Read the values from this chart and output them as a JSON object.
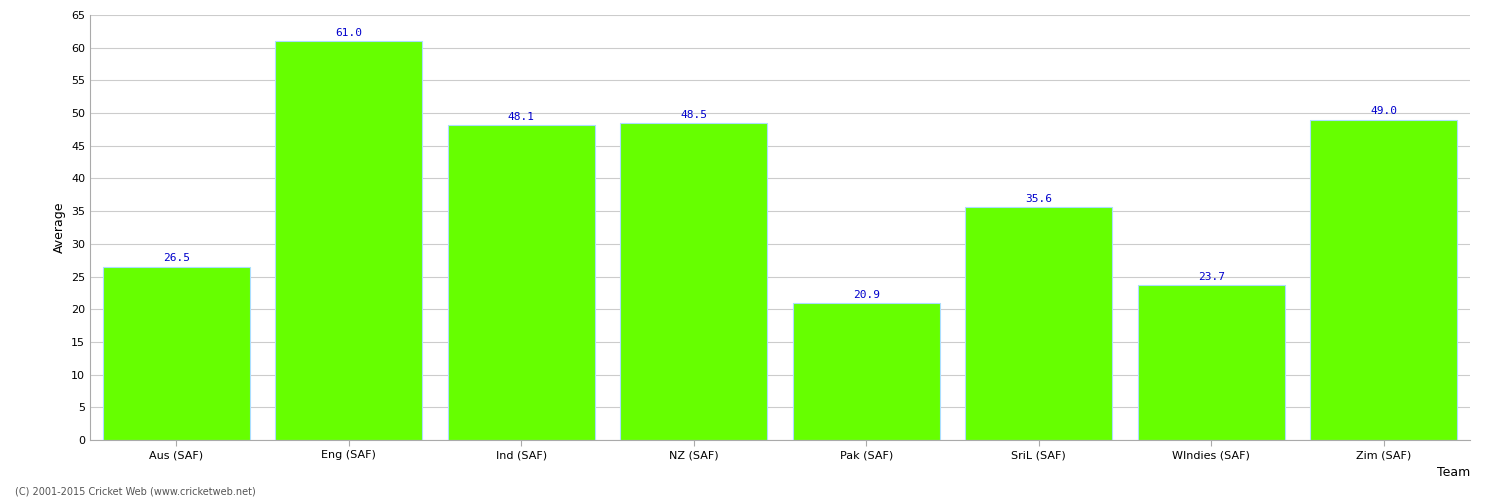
{
  "categories": [
    "Aus (SAF)",
    "Eng (SAF)",
    "Ind (SAF)",
    "NZ (SAF)",
    "Pak (SAF)",
    "SriL (SAF)",
    "WIndies (SAF)",
    "Zim (SAF)"
  ],
  "values": [
    26.5,
    61.0,
    48.1,
    48.5,
    20.9,
    35.6,
    23.7,
    49.0
  ],
  "bar_color": "#66ff00",
  "bar_edge_color": "#aaddff",
  "value_label_color": "#0000cc",
  "value_label_fontsize": 8,
  "xlabel": "Team",
  "ylabel": "Average",
  "ylim": [
    0,
    65
  ],
  "yticks": [
    0,
    5,
    10,
    15,
    20,
    25,
    30,
    35,
    40,
    45,
    50,
    55,
    60,
    65
  ],
  "grid_color": "#cccccc",
  "background_color": "#ffffff",
  "axes_background_color": "#ffffff",
  "tick_label_fontsize": 8,
  "axis_label_fontsize": 9,
  "footer_text": "(C) 2001-2015 Cricket Web (www.cricketweb.net)",
  "footer_fontsize": 7,
  "bar_width": 0.85,
  "fig_width": 15.0,
  "fig_height": 5.0,
  "dpi": 100
}
